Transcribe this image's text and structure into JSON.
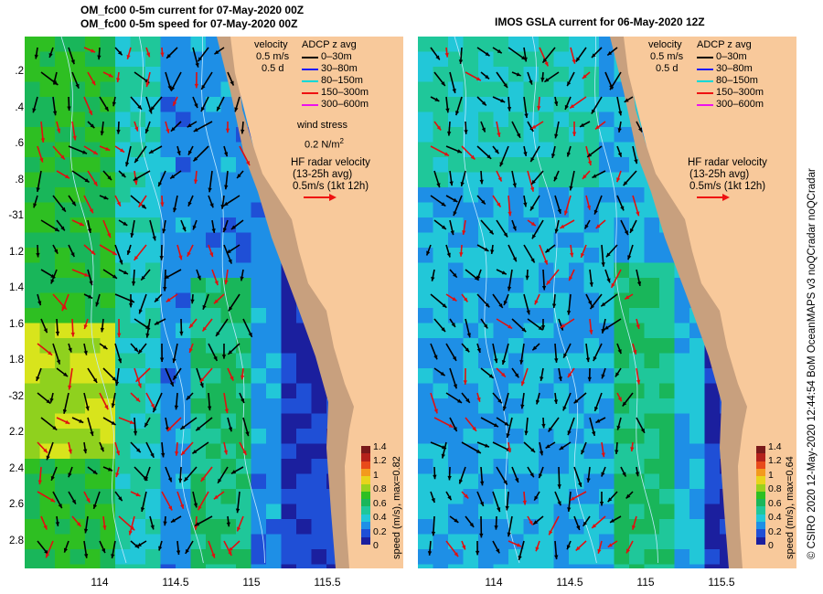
{
  "titles": {
    "left_line1": "OM_fc00 0-5m current for 07-May-2020 00Z",
    "left_line2": "OM_fc00 0-5m speed for 07-May-2020 00Z",
    "right": "IMOS GSLA current for 06-May-2020 12Z"
  },
  "lat_labels": [
    ".2",
    ".4",
    ".6",
    ".8",
    "-31",
    "1.2",
    "1.4",
    "1.6",
    "1.8",
    "-32",
    "2.2",
    "2.4",
    "2.6",
    "2.8"
  ],
  "lon_labels": [
    "114",
    "114.5",
    "115",
    "115.5"
  ],
  "legend": {
    "velocity_title": "velocity",
    "velocity_scale": "0.5 m/s",
    "velocity_time": "0.5 d",
    "adcp_title": "ADCP z avg",
    "adcp_items": [
      {
        "label": "0–30m",
        "color": "#000000"
      },
      {
        "label": "30–80m",
        "color": "#1a1aff"
      },
      {
        "label": "80–150m",
        "color": "#00d8d8"
      },
      {
        "label": "150–300m",
        "color": "#ee1111"
      },
      {
        "label": "300–600m",
        "color": "#ee11ee"
      }
    ],
    "wind_title": "wind stress",
    "wind_value": "0.2 N/m",
    "wind_exp": "2",
    "hf_title": "HF radar velocity",
    "hf_avg": "(13-25h avg)",
    "hf_scale": "0.5m/s (1kt 12h)"
  },
  "colorbar": {
    "ticks": [
      "1.4",
      "1.2",
      "1",
      "0.8",
      "0.6",
      "0.4",
      "0.2",
      "0"
    ],
    "left_label": "speed (m/s), max=0.82",
    "right_label": "speed (m/s), max=0.64"
  },
  "side_text": "© CSIRO 2020   12-May-2020 12:44:54 BoM OceanMAPS v3 noQCradar noQCradar",
  "colors": {
    "land": "#f8c99b",
    "shelf": "#c8a07e",
    "arrow_left_primary": "#000000",
    "arrow_left_secondary": "#e01010"
  }
}
